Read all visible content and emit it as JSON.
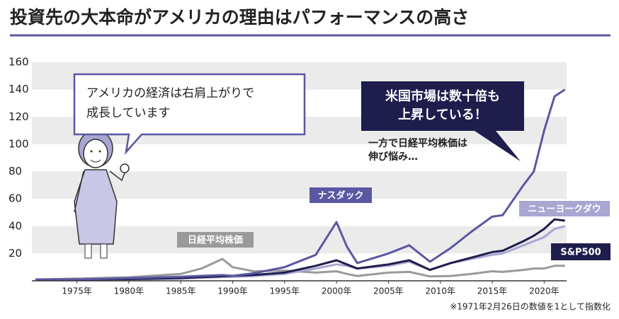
{
  "chart_data": {
    "type": "line",
    "title": "投資先の大本命がアメリカの理由はパフォーマンスの高さ",
    "x": [
      1971,
      1975,
      1980,
      1985,
      1987,
      1989,
      1990,
      1992,
      1995,
      1998,
      2000,
      2001,
      2002,
      2005,
      2007,
      2009,
      2011,
      2013,
      2015,
      2016,
      2018,
      2019,
      2020,
      2021,
      2022
    ],
    "series": [
      {
        "name": "日経平均株価",
        "color": "#9a9a9a",
        "values": [
          1,
          1.6,
          2.6,
          5,
          9,
          16,
          10,
          7,
          7.5,
          6,
          7,
          5,
          3.5,
          6,
          6.5,
          3.2,
          3.5,
          5,
          7,
          6.5,
          8,
          9,
          9,
          11,
          11
        ]
      },
      {
        "name": "ニューヨークダウ",
        "color": "#a9a6d1",
        "values": [
          1,
          1,
          1,
          1.6,
          2.2,
          2.8,
          2.9,
          3.5,
          5,
          9,
          12,
          11,
          9,
          11,
          14,
          8,
          13,
          16,
          19,
          20,
          26,
          29,
          32,
          38,
          40
        ]
      },
      {
        "name": "S&P500",
        "color": "#1f1d4c",
        "values": [
          1,
          1,
          1.3,
          2,
          2.7,
          3.3,
          3.6,
          4.3,
          6,
          11,
          15,
          12,
          9,
          12,
          15,
          8,
          13,
          17,
          21,
          22,
          29,
          33,
          38,
          45,
          44
        ]
      },
      {
        "name": "ナスダック",
        "color": "#5b57a3",
        "values": [
          1,
          1,
          1.9,
          3,
          3.6,
          4.2,
          3.6,
          5.5,
          10,
          19,
          43,
          25,
          13,
          20,
          26,
          14,
          24,
          36,
          47,
          48,
          70,
          80,
          110,
          135,
          140
        ]
      }
    ],
    "xlim": [
      1971,
      2022.5
    ],
    "xticks": [
      {
        "value": 1975,
        "label": "1975年"
      },
      {
        "value": 1980,
        "label": "1980年"
      },
      {
        "value": 1985,
        "label": "1985年"
      },
      {
        "value": 1990,
        "label": "1990年"
      },
      {
        "value": 1995,
        "label": "1995年"
      },
      {
        "value": 2000,
        "label": "2000年"
      },
      {
        "value": 2005,
        "label": "2005年"
      },
      {
        "value": 2010,
        "label": "2010年"
      },
      {
        "value": 2015,
        "label": "2015年"
      },
      {
        "value": 2020,
        "label": "2020年"
      }
    ],
    "ylim": [
      0,
      160
    ],
    "yticks": [
      20,
      40,
      60,
      80,
      100,
      120,
      140,
      160
    ],
    "grid": true,
    "annotations": [
      {
        "lines": [
          "アメリカの経済は右肩上がりで",
          "成長しています"
        ]
      },
      {
        "lines": [
          "米国市場は数十倍も",
          "上昇している！"
        ]
      },
      {
        "lines": [
          "一方で日経平均株価は",
          "伸び悩み…"
        ]
      }
    ],
    "footnote": "※1971年2月26日の数値を1として指数化"
  }
}
